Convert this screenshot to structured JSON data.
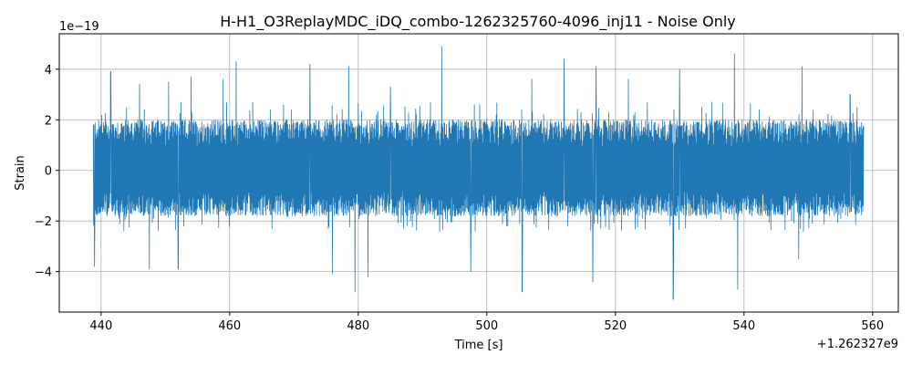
{
  "chart_data": {
    "type": "line",
    "title": "H-H1_O3ReplayMDC_iDQ_combo-1262325760-4096_inj11 - Noise Only",
    "xlabel": "Time [s]",
    "ylabel": "Strain",
    "x_offset_label": "+1.262327e9",
    "y_scale_label": "1e−19",
    "xlim": [
      433.5,
      564
    ],
    "ylim": [
      -5.6,
      5.4
    ],
    "x_ticks": [
      440,
      460,
      480,
      500,
      520,
      540,
      560
    ],
    "x_tick_labels": [
      "440",
      "460",
      "480",
      "500",
      "520",
      "540",
      "560"
    ],
    "y_ticks": [
      -4,
      -2,
      0,
      2,
      4
    ],
    "y_tick_labels": [
      "−4",
      "−2",
      "0",
      "2",
      "4"
    ],
    "grid": true,
    "legend": "none",
    "series": [
      {
        "color": "#1f77b4",
        "x_start": 438.8,
        "x_end": 558.6,
        "typical_amplitude": [
          -1.8,
          2.0
        ],
        "peaks": [
          {
            "x": 441.5,
            "y": 3.9
          },
          {
            "x": 446.0,
            "y": 3.4
          },
          {
            "x": 450.5,
            "y": 3.5
          },
          {
            "x": 454.0,
            "y": 3.7
          },
          {
            "x": 459.0,
            "y": 3.6
          },
          {
            "x": 461.0,
            "y": 4.3
          },
          {
            "x": 472.5,
            "y": 4.2
          },
          {
            "x": 478.5,
            "y": 4.1
          },
          {
            "x": 485.0,
            "y": 3.3
          },
          {
            "x": 493.0,
            "y": 4.9
          },
          {
            "x": 507.0,
            "y": 3.6
          },
          {
            "x": 512.0,
            "y": 4.4
          },
          {
            "x": 517.0,
            "y": 4.1
          },
          {
            "x": 522.0,
            "y": 3.6
          },
          {
            "x": 530.0,
            "y": 4.0
          },
          {
            "x": 538.5,
            "y": 4.6
          },
          {
            "x": 549.0,
            "y": 4.1
          },
          {
            "x": 556.5,
            "y": 3.0
          }
        ],
        "troughs": [
          {
            "x": 439.0,
            "y": -3.8
          },
          {
            "x": 447.5,
            "y": -3.9
          },
          {
            "x": 452.0,
            "y": -3.9
          },
          {
            "x": 476.0,
            "y": -4.1
          },
          {
            "x": 479.5,
            "y": -4.8
          },
          {
            "x": 481.5,
            "y": -4.2
          },
          {
            "x": 497.5,
            "y": -4.0
          },
          {
            "x": 505.5,
            "y": -4.8
          },
          {
            "x": 516.5,
            "y": -4.4
          },
          {
            "x": 529.0,
            "y": -5.1
          },
          {
            "x": 539.0,
            "y": -4.7
          },
          {
            "x": 548.5,
            "y": -3.5
          }
        ]
      }
    ]
  }
}
